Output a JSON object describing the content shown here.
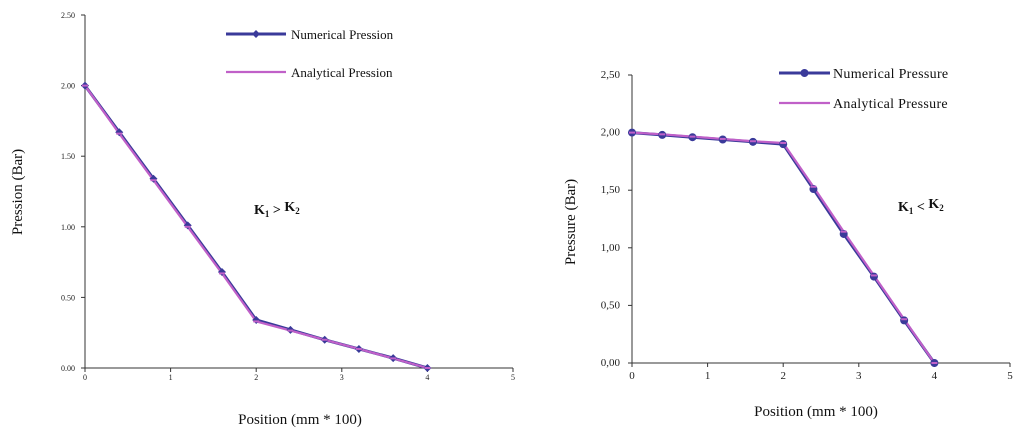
{
  "chart_data": [
    {
      "type": "line",
      "xlabel": "Position (mm * 100)",
      "ylabel": "Pression (Bar)",
      "xlim": [
        0,
        5
      ],
      "ylim": [
        0,
        2.5
      ],
      "x_ticks": [
        "0",
        "1",
        "2",
        "3",
        "4",
        "5"
      ],
      "y_ticks": [
        "0.00",
        "0.50",
        "1.00",
        "1.50",
        "2.00",
        "2.50"
      ],
      "annotation": {
        "k1": "K",
        "sub1": "1",
        "op": " > ",
        "k2": "K",
        "sub2": "2"
      },
      "legend_position": "top-right",
      "series": [
        {
          "name": "Numerical Pression",
          "color": "#3a3a9a",
          "marker": "diamond",
          "x": [
            0,
            0.4,
            0.8,
            1.2,
            1.6,
            2.0,
            2.4,
            2.8,
            3.2,
            3.6,
            4.0
          ],
          "values": [
            2.0,
            1.67,
            1.34,
            1.01,
            0.68,
            0.34,
            0.27,
            0.2,
            0.135,
            0.07,
            0.0
          ]
        },
        {
          "name": "Analytical Pression",
          "color": "#c060c8",
          "marker": "dash",
          "x": [
            0,
            0.4,
            0.8,
            1.2,
            1.6,
            2.0,
            2.4,
            2.8,
            3.2,
            3.6,
            4.0
          ],
          "values": [
            2.0,
            1.66,
            1.33,
            1.0,
            0.67,
            0.33,
            0.265,
            0.2,
            0.135,
            0.068,
            0.0
          ]
        }
      ]
    },
    {
      "type": "line",
      "xlabel": "Position (mm * 100)",
      "ylabel": "Pressure (Bar)",
      "xlim": [
        0,
        5
      ],
      "ylim": [
        0,
        2.5
      ],
      "x_ticks": [
        "0",
        "1",
        "2",
        "3",
        "4",
        "5"
      ],
      "y_ticks": [
        "0,00",
        "0,50",
        "1,00",
        "1,50",
        "2,00",
        "2,50"
      ],
      "annotation": {
        "k1": "K",
        "sub1": "1",
        "op": " < ",
        "k2": "K",
        "sub2": "2"
      },
      "legend_position": "top-right",
      "series": [
        {
          "name": "Numerical Pressure",
          "color": "#3a3a9a",
          "marker": "circle",
          "x": [
            0,
            0.4,
            0.8,
            1.2,
            1.6,
            2.0,
            2.4,
            2.8,
            3.2,
            3.6,
            4.0
          ],
          "values": [
            2.0,
            1.98,
            1.96,
            1.94,
            1.92,
            1.9,
            1.51,
            1.12,
            0.75,
            0.37,
            0.0
          ]
        },
        {
          "name": "Analytical Pressure",
          "color": "#c060c8",
          "marker": "dash",
          "x": [
            0,
            0.4,
            0.8,
            1.2,
            1.6,
            2.0,
            2.4,
            2.8,
            3.2,
            3.6,
            4.0
          ],
          "values": [
            2.0,
            1.985,
            1.965,
            1.945,
            1.925,
            1.91,
            1.53,
            1.14,
            0.76,
            0.38,
            0.0
          ]
        }
      ]
    }
  ]
}
